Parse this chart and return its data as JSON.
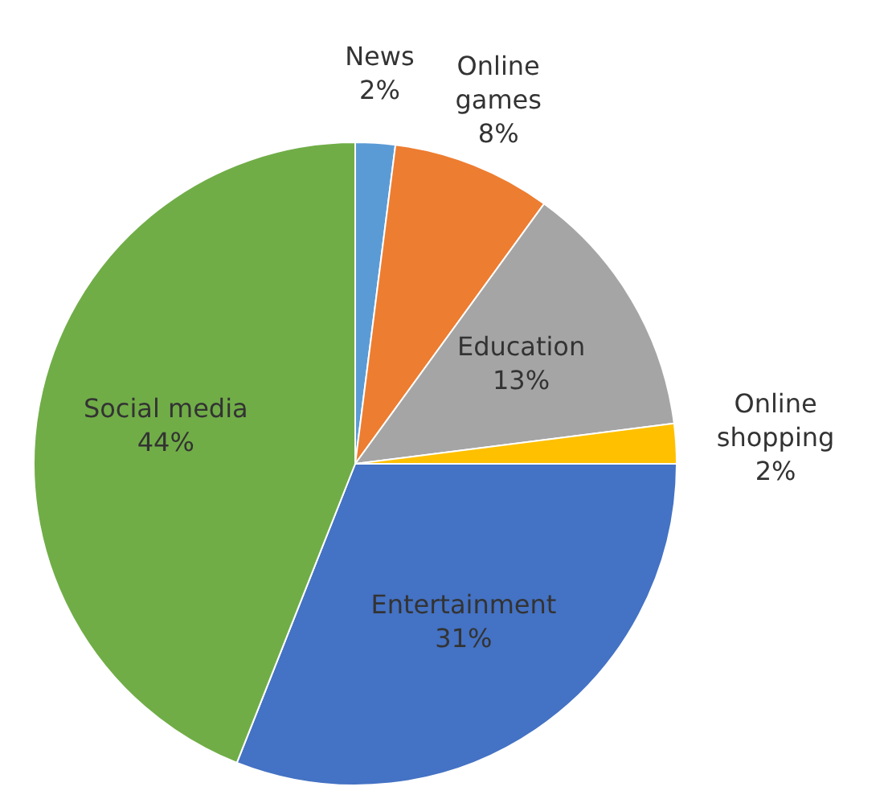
{
  "chart_data": {
    "type": "pie",
    "categories": [
      "News",
      "Online games",
      "Education",
      "Online shopping",
      "Entertainment",
      "Social media"
    ],
    "values": [
      2,
      8,
      13,
      2,
      31,
      44
    ],
    "colors": [
      "#5b9bd5",
      "#ed7d31",
      "#a5a5a5",
      "#ffc000",
      "#4472c4",
      "#70ad47"
    ],
    "value_labels": [
      "2%",
      "8%",
      "13%",
      "2%",
      "31%",
      "44%"
    ],
    "legend": false
  }
}
